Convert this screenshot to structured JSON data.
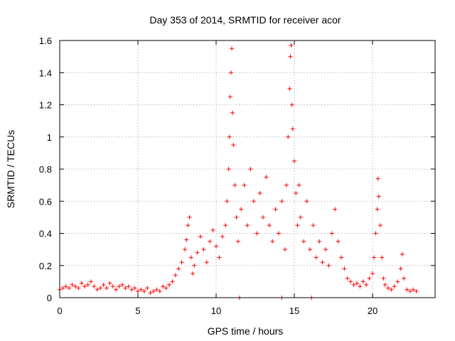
{
  "chart_data": {
    "type": "scatter",
    "title": "Day 353 of 2014, SRMTID for receiver acor",
    "xlabel": "GPS time / hours",
    "ylabel": "SRMTID / TECUs",
    "xlim": [
      0,
      24
    ],
    "ylim": [
      0,
      1.6
    ],
    "grid": true,
    "marker": "+",
    "color": "#ff0000",
    "xticks": [
      0,
      5,
      10,
      15,
      20
    ],
    "xtick_labels": [
      "0",
      "5",
      "10",
      "15",
      "20"
    ],
    "yticks": [
      0,
      0.2,
      0.4,
      0.6,
      0.8,
      1.0,
      1.2,
      1.4,
      1.6
    ],
    "ytick_labels": [
      "0",
      "0.2",
      "0.4",
      "0.6",
      "0.8",
      "1",
      "1.2",
      "1.4",
      "1.6"
    ],
    "series": [
      {
        "name": "SRMTID",
        "points": [
          [
            0.0,
            0.05
          ],
          [
            0.2,
            0.06
          ],
          [
            0.4,
            0.07
          ],
          [
            0.6,
            0.06
          ],
          [
            0.8,
            0.08
          ],
          [
            1.0,
            0.07
          ],
          [
            1.2,
            0.06
          ],
          [
            1.4,
            0.09
          ],
          [
            1.6,
            0.07
          ],
          [
            1.8,
            0.08
          ],
          [
            2.0,
            0.1
          ],
          [
            2.2,
            0.07
          ],
          [
            2.4,
            0.05
          ],
          [
            2.6,
            0.06
          ],
          [
            2.8,
            0.08
          ],
          [
            3.0,
            0.06
          ],
          [
            3.2,
            0.09
          ],
          [
            3.4,
            0.07
          ],
          [
            3.6,
            0.05
          ],
          [
            3.8,
            0.07
          ],
          [
            4.0,
            0.08
          ],
          [
            4.2,
            0.06
          ],
          [
            4.4,
            0.07
          ],
          [
            4.6,
            0.05
          ],
          [
            4.8,
            0.06
          ],
          [
            5.0,
            0.04
          ],
          [
            5.2,
            0.05
          ],
          [
            5.4,
            0.04
          ],
          [
            5.6,
            0.06
          ],
          [
            5.8,
            0.03
          ],
          [
            6.0,
            0.04
          ],
          [
            6.2,
            0.05
          ],
          [
            6.4,
            0.04
          ],
          [
            6.6,
            0.07
          ],
          [
            6.8,
            0.06
          ],
          [
            7.0,
            0.08
          ],
          [
            7.2,
            0.1
          ],
          [
            7.4,
            0.14
          ],
          [
            7.6,
            0.18
          ],
          [
            7.8,
            0.22
          ],
          [
            8.0,
            0.3
          ],
          [
            8.1,
            0.36
          ],
          [
            8.2,
            0.45
          ],
          [
            8.3,
            0.5
          ],
          [
            8.4,
            0.25
          ],
          [
            8.5,
            0.15
          ],
          [
            8.6,
            0.2
          ],
          [
            8.8,
            0.28
          ],
          [
            9.0,
            0.38
          ],
          [
            9.2,
            0.3
          ],
          [
            9.4,
            0.22
          ],
          [
            9.6,
            0.35
          ],
          [
            9.8,
            0.42
          ],
          [
            10.0,
            0.32
          ],
          [
            10.2,
            0.25
          ],
          [
            10.4,
            0.38
          ],
          [
            10.6,
            0.45
          ],
          [
            10.7,
            0.6
          ],
          [
            10.8,
            0.8
          ],
          [
            10.85,
            1.0
          ],
          [
            10.9,
            1.25
          ],
          [
            10.95,
            1.4
          ],
          [
            11.0,
            1.55
          ],
          [
            11.05,
            1.15
          ],
          [
            11.1,
            0.95
          ],
          [
            11.2,
            0.7
          ],
          [
            11.3,
            0.5
          ],
          [
            11.4,
            0.35
          ],
          [
            11.6,
            0.55
          ],
          [
            11.8,
            0.7
          ],
          [
            12.0,
            0.45
          ],
          [
            12.2,
            0.8
          ],
          [
            12.4,
            0.6
          ],
          [
            12.6,
            0.4
          ],
          [
            12.8,
            0.65
          ],
          [
            13.0,
            0.5
          ],
          [
            13.2,
            0.75
          ],
          [
            13.4,
            0.45
          ],
          [
            13.6,
            0.35
          ],
          [
            13.8,
            0.55
          ],
          [
            14.0,
            0.4
          ],
          [
            14.2,
            0.6
          ],
          [
            14.4,
            0.3
          ],
          [
            14.5,
            0.7
          ],
          [
            14.6,
            1.0
          ],
          [
            14.7,
            1.3
          ],
          [
            14.75,
            1.5
          ],
          [
            14.8,
            1.57
          ],
          [
            14.85,
            1.2
          ],
          [
            14.9,
            1.05
          ],
          [
            15.0,
            0.85
          ],
          [
            15.1,
            0.65
          ],
          [
            15.2,
            0.45
          ],
          [
            15.3,
            0.7
          ],
          [
            15.4,
            0.5
          ],
          [
            15.6,
            0.35
          ],
          [
            15.8,
            0.6
          ],
          [
            16.0,
            0.3
          ],
          [
            16.2,
            0.45
          ],
          [
            16.4,
            0.25
          ],
          [
            16.6,
            0.35
          ],
          [
            16.8,
            0.22
          ],
          [
            17.0,
            0.3
          ],
          [
            17.2,
            0.2
          ],
          [
            17.4,
            0.4
          ],
          [
            17.6,
            0.55
          ],
          [
            17.8,
            0.35
          ],
          [
            18.0,
            0.25
          ],
          [
            18.2,
            0.18
          ],
          [
            18.4,
            0.12
          ],
          [
            18.6,
            0.1
          ],
          [
            18.8,
            0.08
          ],
          [
            19.0,
            0.09
          ],
          [
            19.2,
            0.07
          ],
          [
            19.4,
            0.1
          ],
          [
            19.6,
            0.08
          ],
          [
            19.8,
            0.12
          ],
          [
            20.0,
            0.15
          ],
          [
            20.1,
            0.25
          ],
          [
            20.2,
            0.4
          ],
          [
            20.3,
            0.55
          ],
          [
            20.35,
            0.74
          ],
          [
            20.4,
            0.63
          ],
          [
            20.5,
            0.45
          ],
          [
            20.6,
            0.25
          ],
          [
            20.7,
            0.12
          ],
          [
            20.8,
            0.08
          ],
          [
            21.0,
            0.06
          ],
          [
            21.2,
            0.05
          ],
          [
            21.4,
            0.07
          ],
          [
            21.6,
            0.1
          ],
          [
            21.8,
            0.18
          ],
          [
            21.9,
            0.27
          ],
          [
            22.0,
            0.12
          ],
          [
            22.2,
            0.05
          ],
          [
            22.4,
            0.04
          ],
          [
            22.6,
            0.05
          ],
          [
            22.8,
            0.04
          ],
          [
            11.5,
            0.0
          ],
          [
            14.2,
            0.0
          ],
          [
            16.1,
            0.0
          ]
        ]
      }
    ]
  }
}
